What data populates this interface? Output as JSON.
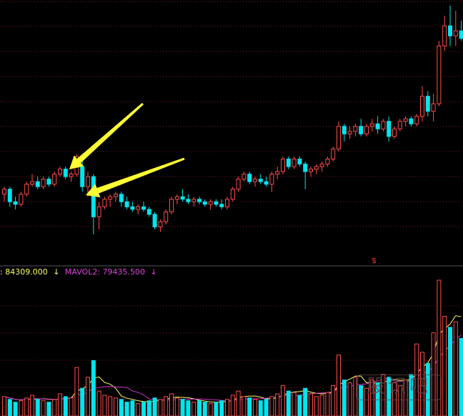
{
  "chart_data": {
    "type": "candlestick",
    "colors": {
      "up": "#ff4d4d",
      "down": "#00e5ee",
      "ma1": "#ffff66",
      "ma2": "#cc33cc",
      "arrow": "#ffff33",
      "grid": "#7a1f1f"
    },
    "grid": true,
    "price_range": [
      0,
      100
    ],
    "volume_range": [
      0,
      100
    ],
    "candles": [
      {
        "o": 61,
        "h": 64,
        "l": 58,
        "c": 63
      },
      {
        "o": 63,
        "h": 64,
        "l": 56,
        "c": 58
      },
      {
        "o": 58,
        "h": 60,
        "l": 55,
        "c": 57
      },
      {
        "o": 57,
        "h": 62,
        "l": 56,
        "c": 61
      },
      {
        "o": 61,
        "h": 66,
        "l": 60,
        "c": 65
      },
      {
        "o": 65,
        "h": 69,
        "l": 64,
        "c": 66
      },
      {
        "o": 66,
        "h": 68,
        "l": 63,
        "c": 64
      },
      {
        "o": 64,
        "h": 68,
        "l": 63,
        "c": 67
      },
      {
        "o": 67,
        "h": 68,
        "l": 64,
        "c": 65
      },
      {
        "o": 65,
        "h": 70,
        "l": 64,
        "c": 69
      },
      {
        "o": 69,
        "h": 72,
        "l": 68,
        "c": 71
      },
      {
        "o": 71,
        "h": 72,
        "l": 67,
        "c": 68
      },
      {
        "o": 68,
        "h": 70,
        "l": 66,
        "c": 69
      },
      {
        "o": 69,
        "h": 77,
        "l": 68,
        "c": 76
      },
      {
        "o": 72,
        "h": 74,
        "l": 62,
        "c": 64
      },
      {
        "o": 64,
        "h": 70,
        "l": 60,
        "c": 68
      },
      {
        "o": 68,
        "h": 69,
        "l": 45,
        "c": 52
      },
      {
        "o": 52,
        "h": 58,
        "l": 47,
        "c": 56
      },
      {
        "o": 56,
        "h": 60,
        "l": 55,
        "c": 59
      },
      {
        "o": 59,
        "h": 61,
        "l": 56,
        "c": 60
      },
      {
        "o": 60,
        "h": 62,
        "l": 58,
        "c": 61
      },
      {
        "o": 61,
        "h": 62,
        "l": 56,
        "c": 58
      },
      {
        "o": 58,
        "h": 60,
        "l": 55,
        "c": 56
      },
      {
        "o": 56,
        "h": 58,
        "l": 54,
        "c": 55
      },
      {
        "o": 55,
        "h": 57,
        "l": 53,
        "c": 56
      },
      {
        "o": 56,
        "h": 58,
        "l": 54,
        "c": 55
      },
      {
        "o": 55,
        "h": 56,
        "l": 52,
        "c": 53
      },
      {
        "o": 53,
        "h": 54,
        "l": 47,
        "c": 48
      },
      {
        "o": 48,
        "h": 51,
        "l": 46,
        "c": 50
      },
      {
        "o": 50,
        "h": 55,
        "l": 49,
        "c": 54
      },
      {
        "o": 54,
        "h": 60,
        "l": 53,
        "c": 59
      },
      {
        "o": 59,
        "h": 61,
        "l": 57,
        "c": 60
      },
      {
        "o": 60,
        "h": 63,
        "l": 58,
        "c": 59
      },
      {
        "o": 59,
        "h": 61,
        "l": 57,
        "c": 58
      },
      {
        "o": 58,
        "h": 60,
        "l": 56,
        "c": 59
      },
      {
        "o": 59,
        "h": 60,
        "l": 57,
        "c": 58
      },
      {
        "o": 58,
        "h": 59,
        "l": 56,
        "c": 57
      },
      {
        "o": 57,
        "h": 59,
        "l": 55,
        "c": 58
      },
      {
        "o": 58,
        "h": 59,
        "l": 56,
        "c": 57
      },
      {
        "o": 57,
        "h": 59,
        "l": 55,
        "c": 56
      },
      {
        "o": 56,
        "h": 60,
        "l": 55,
        "c": 59
      },
      {
        "o": 59,
        "h": 64,
        "l": 58,
        "c": 63
      },
      {
        "o": 63,
        "h": 68,
        "l": 62,
        "c": 67
      },
      {
        "o": 67,
        "h": 70,
        "l": 66,
        "c": 69
      },
      {
        "o": 69,
        "h": 70,
        "l": 65,
        "c": 66
      },
      {
        "o": 66,
        "h": 68,
        "l": 64,
        "c": 67
      },
      {
        "o": 67,
        "h": 69,
        "l": 65,
        "c": 66
      },
      {
        "o": 66,
        "h": 68,
        "l": 64,
        "c": 65
      },
      {
        "o": 65,
        "h": 70,
        "l": 62,
        "c": 69
      },
      {
        "o": 69,
        "h": 72,
        "l": 67,
        "c": 70
      },
      {
        "o": 70,
        "h": 76,
        "l": 69,
        "c": 75
      },
      {
        "o": 75,
        "h": 76,
        "l": 71,
        "c": 72
      },
      {
        "o": 72,
        "h": 76,
        "l": 71,
        "c": 75
      },
      {
        "o": 75,
        "h": 76,
        "l": 72,
        "c": 73
      },
      {
        "o": 73,
        "h": 74,
        "l": 63,
        "c": 70
      },
      {
        "o": 70,
        "h": 72,
        "l": 68,
        "c": 71
      },
      {
        "o": 71,
        "h": 73,
        "l": 69,
        "c": 72
      },
      {
        "o": 72,
        "h": 74,
        "l": 70,
        "c": 73
      },
      {
        "o": 73,
        "h": 76,
        "l": 72,
        "c": 75
      },
      {
        "o": 75,
        "h": 80,
        "l": 74,
        "c": 79
      },
      {
        "o": 79,
        "h": 90,
        "l": 78,
        "c": 88
      },
      {
        "o": 88,
        "h": 89,
        "l": 82,
        "c": 85
      },
      {
        "o": 85,
        "h": 88,
        "l": 83,
        "c": 86
      },
      {
        "o": 86,
        "h": 89,
        "l": 84,
        "c": 88
      },
      {
        "o": 88,
        "h": 91,
        "l": 84,
        "c": 85
      },
      {
        "o": 85,
        "h": 89,
        "l": 84,
        "c": 88
      },
      {
        "o": 88,
        "h": 91,
        "l": 86,
        "c": 89
      },
      {
        "o": 89,
        "h": 92,
        "l": 85,
        "c": 87
      },
      {
        "o": 87,
        "h": 91,
        "l": 86,
        "c": 90
      },
      {
        "o": 90,
        "h": 92,
        "l": 82,
        "c": 84
      },
      {
        "o": 84,
        "h": 88,
        "l": 83,
        "c": 87
      },
      {
        "o": 87,
        "h": 91,
        "l": 86,
        "c": 90
      },
      {
        "o": 90,
        "h": 92,
        "l": 88,
        "c": 91
      },
      {
        "o": 91,
        "h": 92,
        "l": 88,
        "c": 89
      },
      {
        "o": 89,
        "h": 93,
        "l": 88,
        "c": 92
      },
      {
        "o": 92,
        "h": 104,
        "l": 90,
        "c": 100
      },
      {
        "o": 100,
        "h": 102,
        "l": 92,
        "c": 94
      },
      {
        "o": 94,
        "h": 101,
        "l": 90,
        "c": 97
      },
      {
        "o": 97,
        "h": 122,
        "l": 96,
        "c": 120
      },
      {
        "o": 120,
        "h": 132,
        "l": 118,
        "c": 128
      },
      {
        "o": 128,
        "h": 136,
        "l": 120,
        "c": 124
      },
      {
        "o": 124,
        "h": 134,
        "l": 120,
        "c": 126
      },
      {
        "o": 126,
        "h": 130,
        "l": 122,
        "c": 123
      }
    ],
    "volumes": [
      14,
      12,
      10,
      11,
      13,
      15,
      12,
      11,
      10,
      12,
      16,
      14,
      13,
      35,
      20,
      28,
      40,
      18,
      15,
      14,
      13,
      12,
      10,
      11,
      9,
      10,
      11,
      13,
      12,
      14,
      16,
      13,
      12,
      11,
      10,
      11,
      10,
      9,
      10,
      11,
      12,
      15,
      18,
      14,
      13,
      12,
      11,
      12,
      14,
      16,
      22,
      18,
      17,
      15,
      20,
      16,
      14,
      15,
      17,
      22,
      44,
      26,
      24,
      28,
      22,
      20,
      26,
      24,
      30,
      28,
      24,
      22,
      26,
      30,
      52,
      46,
      38,
      60,
      98,
      72,
      64,
      68,
      56
    ],
    "mavol1_label": ": 84309.000",
    "mavol2_label": "MAVOL2: 79435.500",
    "mavol1_arrow": "↓",
    "mavol2_arrow": "↓",
    "signal_marker": "$"
  },
  "watermark": "股识吧"
}
